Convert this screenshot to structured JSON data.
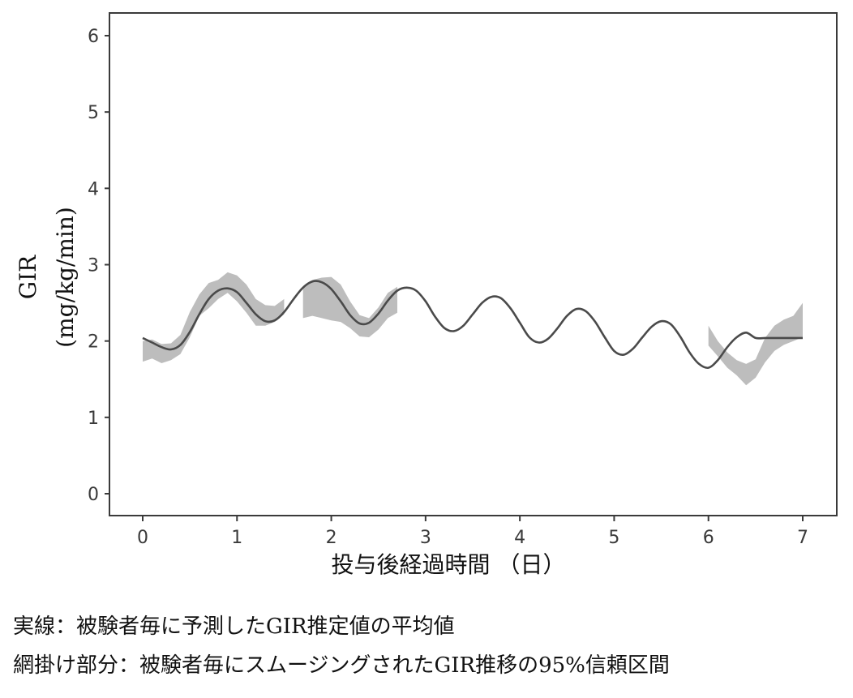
{
  "chart_data": {
    "type": "line",
    "xlabel": "投与後経過時間 （日）",
    "ylabel_line1": "GIR",
    "ylabel_line2": "(mg/kg/min)",
    "xlim": [
      0,
      7
    ],
    "ylim": [
      0,
      6
    ],
    "x_ticks": [
      "0",
      "1",
      "2",
      "3",
      "4",
      "5",
      "6",
      "7"
    ],
    "y_ticks": [
      "0",
      "1",
      "2",
      "3",
      "4",
      "5",
      "6"
    ],
    "grid": false,
    "series": [
      {
        "style": "solid",
        "color": "#4a4a4a",
        "x": [
          0,
          0.1,
          0.2,
          0.3,
          0.4,
          0.5,
          0.6,
          0.7,
          0.8,
          0.9,
          1.0,
          1.1,
          1.2,
          1.3,
          1.4,
          1.5,
          1.6,
          1.7,
          1.8,
          1.9,
          2.0,
          2.1,
          2.2,
          2.3,
          2.4,
          2.5,
          2.6,
          2.7,
          2.8,
          2.9,
          3.0,
          3.1,
          3.2,
          3.3,
          3.4,
          3.5,
          3.6,
          3.7,
          3.8,
          3.9,
          4.0,
          4.1,
          4.2,
          4.3,
          4.4,
          4.5,
          4.6,
          4.7,
          4.8,
          4.9,
          5.0,
          5.1,
          5.2,
          5.3,
          5.4,
          5.5,
          5.6,
          5.7,
          5.8,
          5.9,
          6.0,
          6.1,
          6.2,
          6.3,
          6.4,
          6.5,
          6.6,
          6.7,
          6.8,
          6.9,
          7.0
        ],
        "y": [
          2.04,
          1.98,
          1.92,
          1.89,
          1.95,
          2.12,
          2.35,
          2.55,
          2.66,
          2.69,
          2.64,
          2.5,
          2.35,
          2.26,
          2.27,
          2.38,
          2.55,
          2.7,
          2.78,
          2.77,
          2.68,
          2.52,
          2.34,
          2.23,
          2.24,
          2.36,
          2.53,
          2.66,
          2.7,
          2.66,
          2.52,
          2.32,
          2.17,
          2.13,
          2.2,
          2.35,
          2.5,
          2.58,
          2.56,
          2.43,
          2.24,
          2.05,
          1.98,
          2.03,
          2.17,
          2.33,
          2.42,
          2.39,
          2.25,
          2.05,
          1.87,
          1.82,
          1.9,
          2.05,
          2.19,
          2.26,
          2.22,
          2.06,
          1.85,
          1.7,
          1.65,
          1.75,
          1.92,
          2.05,
          2.11,
          2.04,
          2.04,
          2.04,
          2.04,
          2.04,
          2.04
        ]
      }
    ],
    "bands": [
      {
        "color": "#bdbdbd",
        "x": [
          0,
          0.1,
          0.2,
          0.3,
          0.4,
          0.5,
          0.6,
          0.7,
          0.8,
          0.9,
          1.0,
          1.1,
          1.2,
          1.3,
          1.4,
          1.5
        ],
        "lower": [
          1.73,
          1.77,
          1.71,
          1.75,
          1.83,
          2.05,
          2.33,
          2.43,
          2.55,
          2.63,
          2.52,
          2.37,
          2.2,
          2.2,
          2.25,
          2.35
        ],
        "upper": [
          2.0,
          2.02,
          1.96,
          1.97,
          2.08,
          2.38,
          2.61,
          2.76,
          2.8,
          2.9,
          2.86,
          2.74,
          2.55,
          2.47,
          2.46,
          2.55
        ]
      },
      {
        "color": "#bdbdbd",
        "x": [
          1.7,
          1.8,
          1.9,
          2.0,
          2.1,
          2.2,
          2.3,
          2.4,
          2.5,
          2.6,
          2.7
        ],
        "lower": [
          2.3,
          2.33,
          2.3,
          2.27,
          2.25,
          2.17,
          2.06,
          2.05,
          2.15,
          2.3,
          2.37
        ],
        "upper": [
          2.72,
          2.8,
          2.83,
          2.84,
          2.74,
          2.52,
          2.34,
          2.3,
          2.44,
          2.63,
          2.71
        ]
      },
      {
        "color": "#bdbdbd",
        "x": [
          6.0,
          6.1,
          6.2,
          6.3,
          6.4,
          6.5,
          6.6,
          6.7,
          6.8,
          6.9,
          7.0
        ],
        "lower": [
          1.94,
          1.8,
          1.65,
          1.55,
          1.42,
          1.52,
          1.72,
          1.87,
          1.95,
          2.0,
          2.05
        ],
        "upper": [
          2.2,
          2.0,
          1.85,
          1.75,
          1.7,
          1.76,
          2.04,
          2.2,
          2.28,
          2.33,
          2.5
        ]
      }
    ]
  },
  "captions": {
    "line1": "実線：被験者毎に予測したGIR推定値の平均値",
    "line2": "網掛け部分：被験者毎にスムージングされたGIR推移の95%信頼区間"
  }
}
